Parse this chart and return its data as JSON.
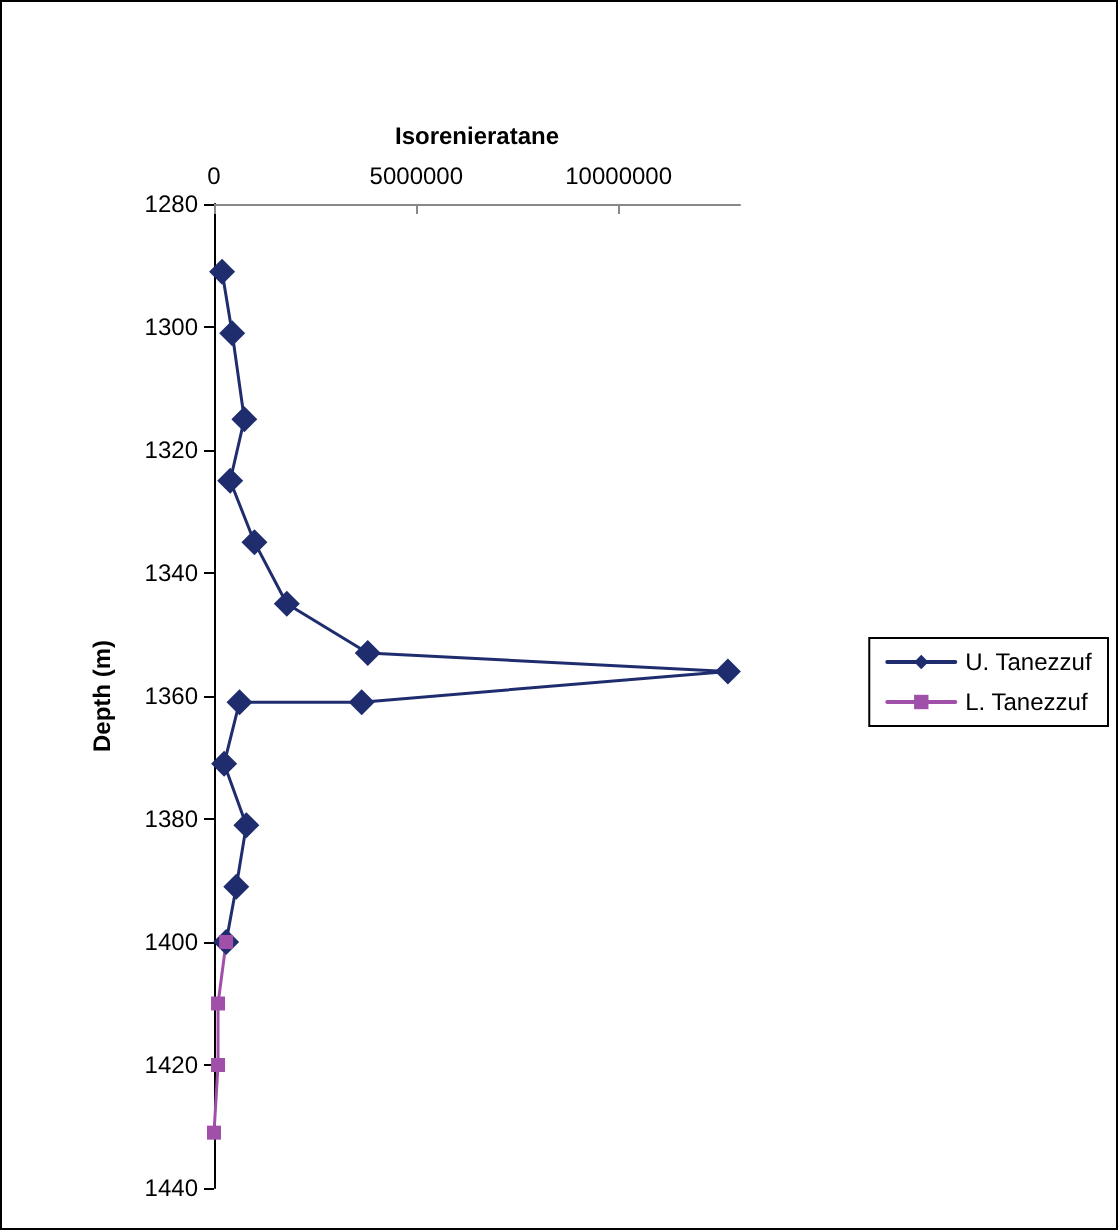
{
  "chart_data": {
    "type": "line",
    "xlabel": "Isorenieratane",
    "ylabel": "Depth (m)",
    "xlim": [
      0,
      13000000
    ],
    "xticks": [
      0,
      5000000,
      10000000
    ],
    "ylim": [
      1440,
      1280
    ],
    "yticks": [
      1280,
      1300,
      1320,
      1340,
      1360,
      1380,
      1400,
      1420,
      1440
    ],
    "grid": false,
    "legend": "right",
    "line_style": "solid",
    "series": [
      {
        "name": "U. Tanezzuf",
        "color": "#1f2d6e",
        "marker": "diamond",
        "x": [
          200000,
          450000,
          750000,
          400000,
          1000000,
          1800000,
          3800000,
          12700000,
          3650000,
          630000,
          250000,
          800000,
          550000,
          300000
        ],
        "values": [
          1291,
          1301,
          1315,
          1325,
          1335,
          1345,
          1353,
          1356,
          1361,
          1361,
          1371,
          1381,
          1391,
          1400
        ]
      },
      {
        "name": "L. Tanezzuf",
        "color": "#a050a8",
        "marker": "square",
        "x": [
          300000,
          100000,
          100000,
          0
        ],
        "values": [
          1400,
          1410,
          1420,
          1431
        ]
      }
    ]
  }
}
